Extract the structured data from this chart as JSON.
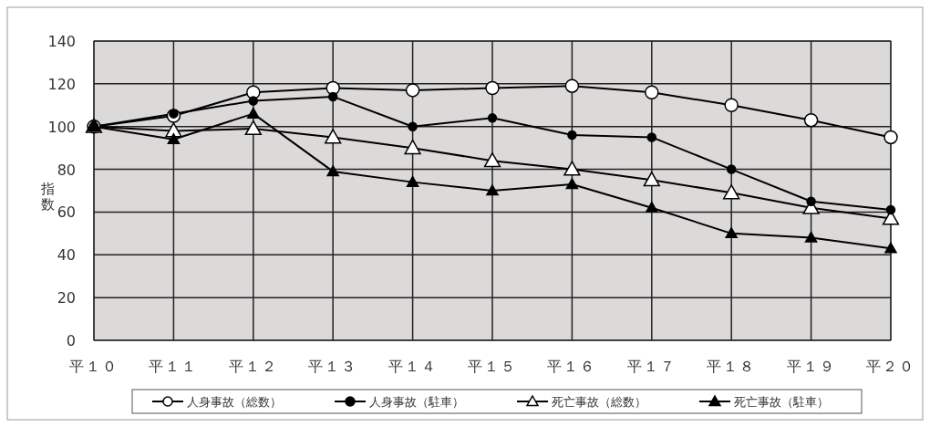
{
  "chart_data": {
    "type": "line",
    "ylabel": "指数",
    "categories": [
      "平１０",
      "平１１",
      "平１２",
      "平１３",
      "平１４",
      "平１５",
      "平１６",
      "平１７",
      "平１８",
      "平１９",
      "平２０"
    ],
    "series": [
      {
        "name": "人身事故（総数）",
        "color": "#000000",
        "marker": "circle",
        "values": [
          100,
          105,
          116,
          118,
          117,
          118,
          119,
          116,
          110,
          103,
          95
        ]
      },
      {
        "name": "人身事故（駐車）",
        "color": "#000000",
        "marker": "circle",
        "values": [
          100,
          106,
          112,
          114,
          100,
          104,
          96,
          95,
          80,
          65,
          61
        ]
      },
      {
        "name": "死亡事故（総数）",
        "color": "#000000",
        "marker": "triangle",
        "values": [
          100,
          98,
          99,
          95,
          90,
          84,
          80,
          75,
          69,
          62,
          57
        ]
      },
      {
        "name": "死亡事故（駐車）",
        "color": "#000000",
        "marker": "triangle",
        "values": [
          100,
          94,
          106,
          79,
          74,
          70,
          73,
          62,
          50,
          48,
          43
        ]
      }
    ],
    "ylim": [
      0,
      140
    ],
    "yticks": [
      0,
      20,
      40,
      60,
      80,
      100,
      120,
      140
    ],
    "grid": true,
    "legend": "bottom"
  }
}
